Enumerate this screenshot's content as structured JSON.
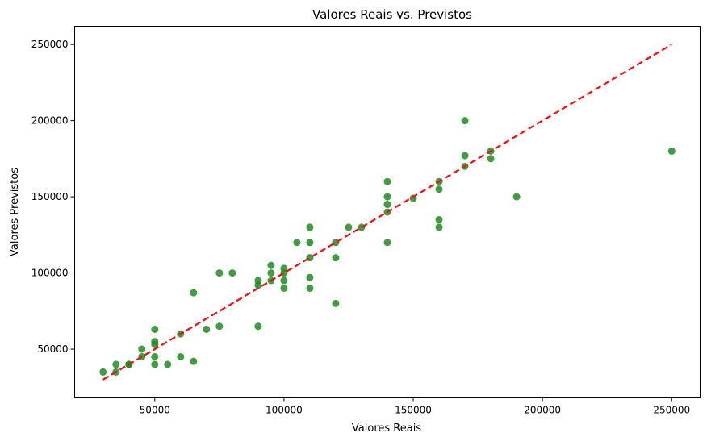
{
  "chart_data": {
    "type": "scatter",
    "title": "Valores Reais vs. Previstos",
    "xlabel": "Valores Reais",
    "ylabel": "Valores Previstos",
    "xlim": [
      19000,
      261000
    ],
    "ylim": [
      18000,
      262000
    ],
    "xticks": [
      50000,
      100000,
      150000,
      200000,
      250000
    ],
    "yticks": [
      50000,
      100000,
      150000,
      200000,
      250000
    ],
    "grid": false,
    "series": [
      {
        "kind": "points",
        "color": "#228B22",
        "opacity": 0.85,
        "x": [
          30000,
          35000,
          35000,
          40000,
          40000,
          45000,
          45000,
          50000,
          50000,
          50000,
          50000,
          50000,
          55000,
          60000,
          60000,
          65000,
          65000,
          70000,
          75000,
          75000,
          80000,
          90000,
          90000,
          90000,
          95000,
          95000,
          95000,
          100000,
          100000,
          100000,
          100000,
          105000,
          110000,
          110000,
          110000,
          110000,
          110000,
          120000,
          120000,
          120000,
          125000,
          130000,
          140000,
          140000,
          140000,
          140000,
          140000,
          150000,
          160000,
          160000,
          160000,
          160000,
          170000,
          170000,
          170000,
          180000,
          180000,
          190000,
          250000
        ],
        "y": [
          35000,
          35000,
          40000,
          40000,
          40000,
          45000,
          50000,
          40000,
          45000,
          53000,
          55000,
          63000,
          40000,
          45000,
          60000,
          42000,
          87000,
          63000,
          65000,
          100000,
          100000,
          65000,
          92000,
          95000,
          95000,
          100000,
          105000,
          90000,
          95000,
          100000,
          103000,
          120000,
          90000,
          97000,
          110000,
          120000,
          130000,
          80000,
          110000,
          120000,
          130000,
          130000,
          120000,
          140000,
          145000,
          150000,
          160000,
          149000,
          130000,
          135000,
          155000,
          160000,
          170000,
          177000,
          200000,
          175000,
          180000,
          150000,
          180000
        ]
      },
      {
        "kind": "reference-line",
        "color": "#e8161b",
        "style": "dashed",
        "x": [
          30000,
          250000
        ],
        "y": [
          30000,
          250000
        ]
      }
    ]
  }
}
